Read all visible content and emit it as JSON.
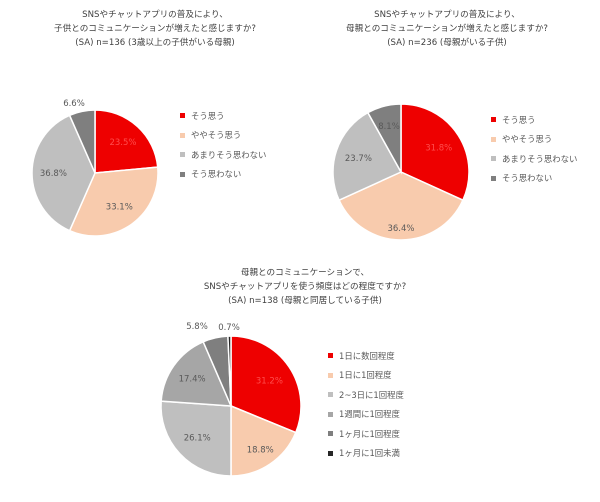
{
  "chart_data": [
    {
      "type": "pie",
      "title_lines": [
        "SNSやチャットアプリの普及により、",
        "子供とのコミュニケーションが増えたと感じますか?",
        "(SA) n=136 (3歳以上の子供がいる母親)"
      ],
      "categories": [
        "そう思う",
        "ややそう思う",
        "あまりそう思わない",
        "そう思わない"
      ],
      "values": [
        23.5,
        33.1,
        36.8,
        6.6
      ],
      "labels": [
        "23.5%",
        "33.1%",
        "36.8%",
        "6.6%"
      ],
      "colors": [
        "#ee0000",
        "#f8cbad",
        "#bfbfbf",
        "#7f7f7f"
      ],
      "legend_position": "right"
    },
    {
      "type": "pie",
      "title_lines": [
        "SNSやチャットアプリの普及により、",
        "母親とのコミュニケーションが増えたと感じますか?",
        "(SA) n=236 (母親がいる子供)"
      ],
      "categories": [
        "そう思う",
        "ややそう思う",
        "あまりそう思わない",
        "そう思わない"
      ],
      "values": [
        31.8,
        36.4,
        23.7,
        8.1
      ],
      "labels": [
        "31.8%",
        "36.4%",
        "23.7%",
        "8.1%"
      ],
      "colors": [
        "#ee0000",
        "#f8cbad",
        "#bfbfbf",
        "#7f7f7f"
      ],
      "legend_position": "right"
    },
    {
      "type": "pie",
      "title_lines": [
        "母親とのコミュニケーションで、",
        "SNSやチャットアプリを使う頻度はどの程度ですか?",
        "(SA) n=138 (母親と同居している子供)"
      ],
      "categories": [
        "1日に数回程度",
        "1日に1回程度",
        "2~3日に1回程度",
        "1週間に1回程度",
        "1ヶ月に1回程度",
        "1ヶ月に1回未満"
      ],
      "values": [
        31.2,
        18.8,
        26.1,
        17.4,
        5.8,
        0.7
      ],
      "labels": [
        "31.2%",
        "18.8%",
        "26.1%",
        "17.4%",
        "5.8%",
        "0.7%"
      ],
      "colors": [
        "#ee0000",
        "#f8cbad",
        "#bfbfbf",
        "#a6a6a6",
        "#7f7f7f",
        "#262626"
      ],
      "legend_position": "right"
    }
  ]
}
